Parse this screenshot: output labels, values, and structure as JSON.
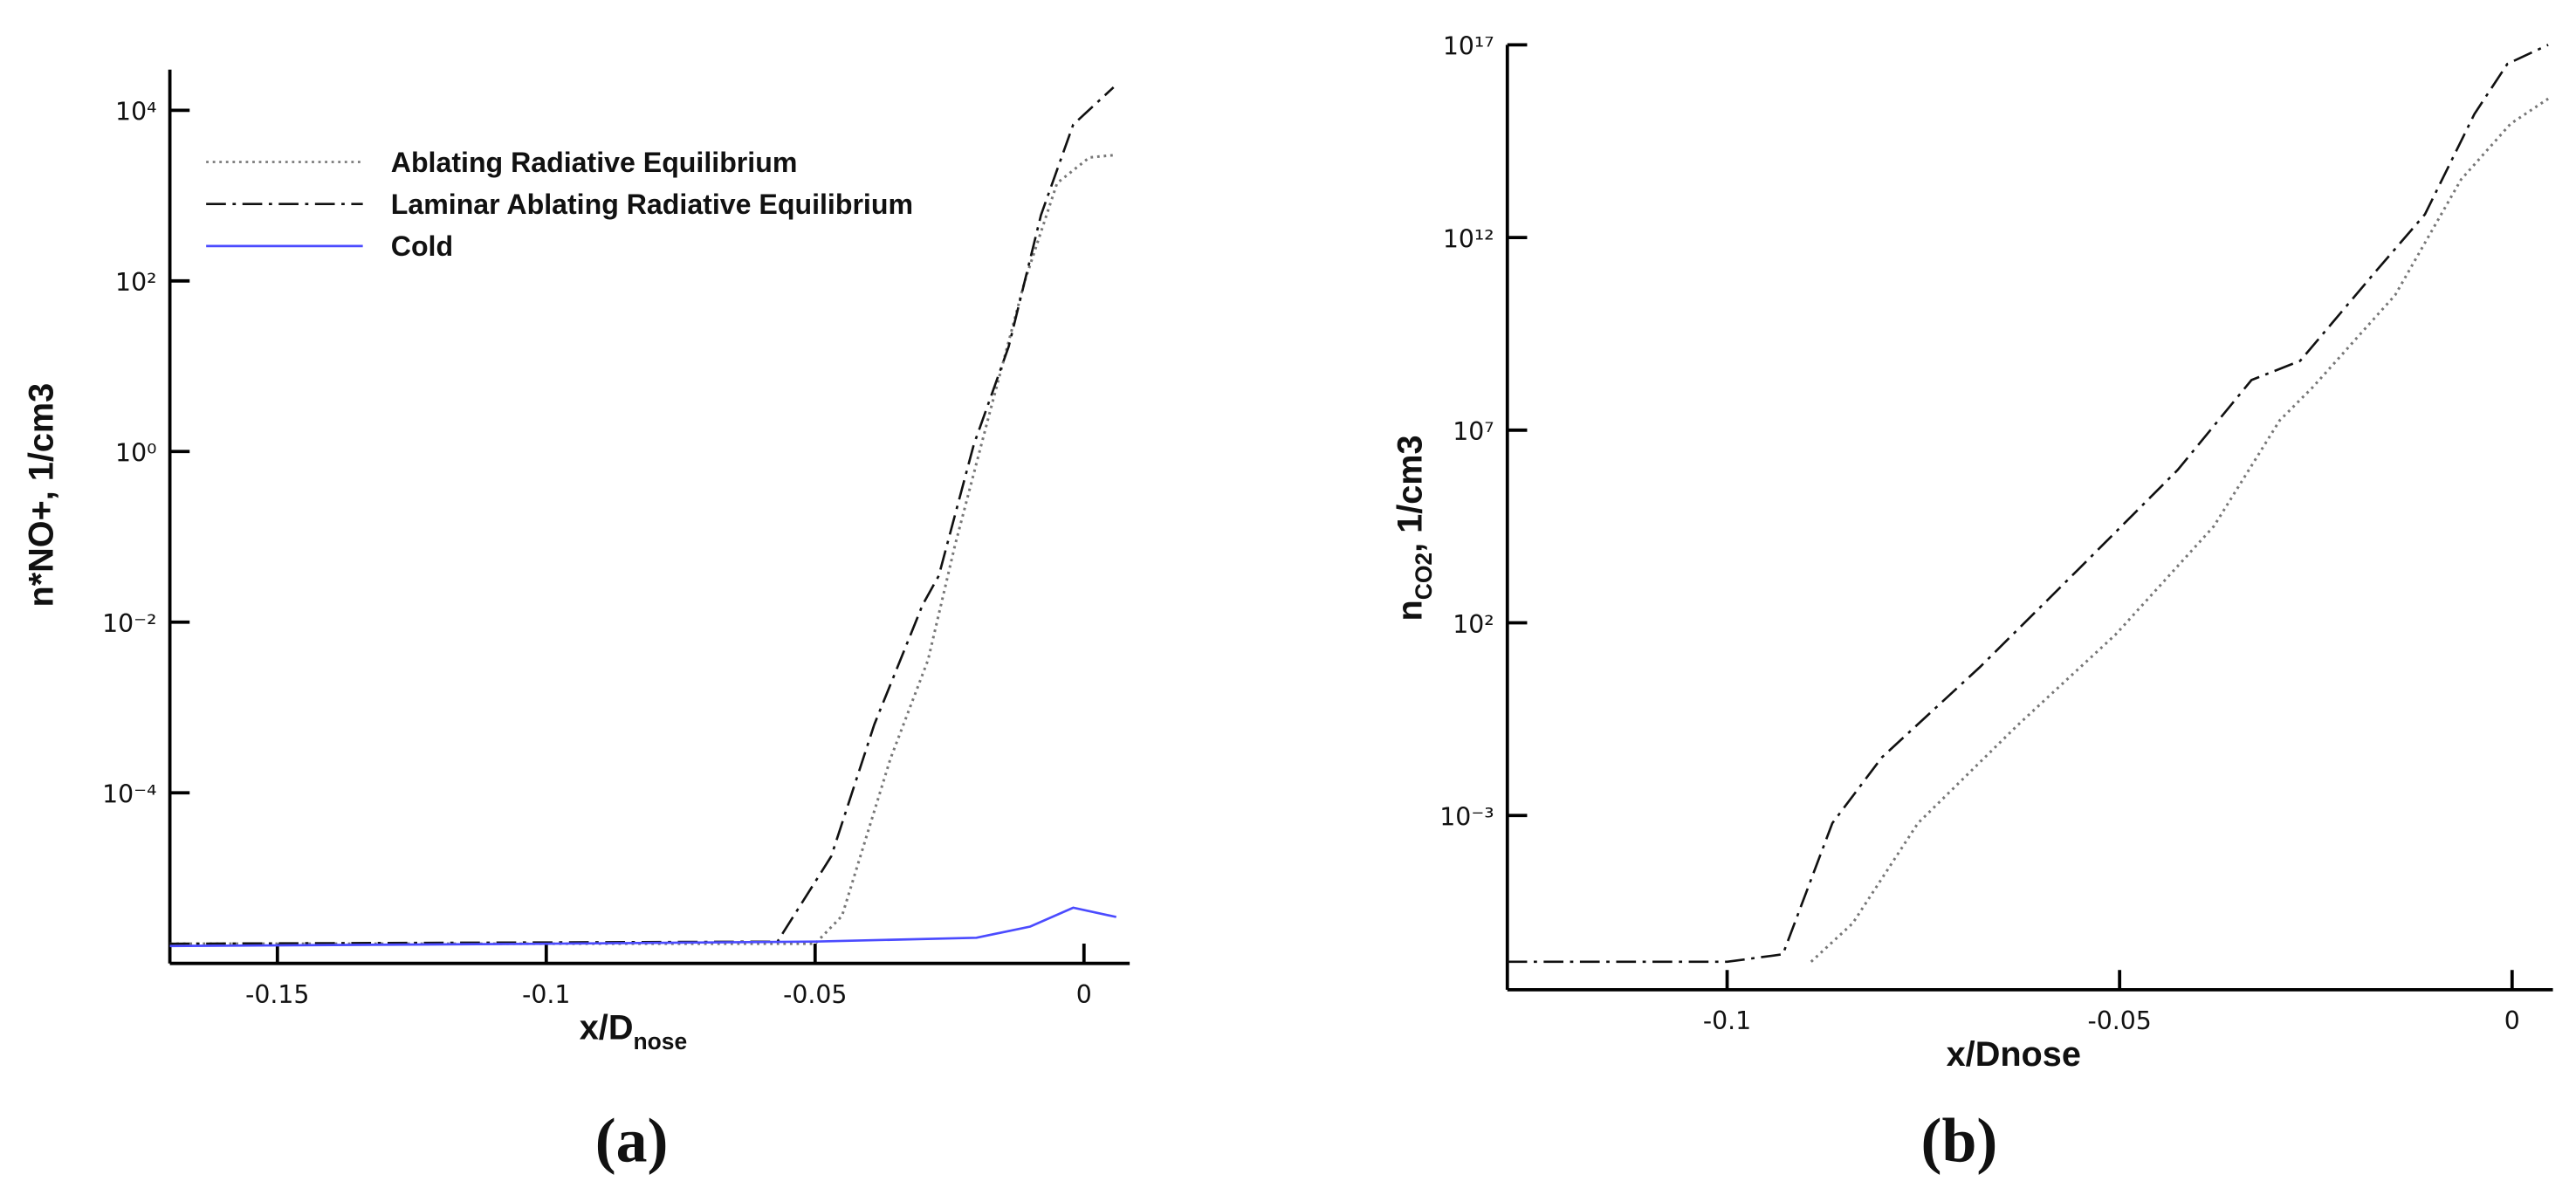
{
  "chart_data": [
    {
      "type": "line",
      "caption": "(a)",
      "ylog": true,
      "xlabel": {
        "text": "x/D",
        "subscript": "nose"
      },
      "ylabel": {
        "text": "n*NO+, 1/cm3"
      },
      "xlim": [
        -0.17,
        0.0085
      ],
      "xticks": [
        -0.15,
        -0.1,
        -0.05,
        0
      ],
      "ylim": [
        1e-06,
        30000
      ],
      "yticks": [
        {
          "value": 0.0001,
          "label": "10⁻⁴"
        },
        {
          "value": 0.01,
          "label": "10⁻²"
        },
        {
          "value": 1,
          "label": "10⁰"
        },
        {
          "value": 100,
          "label": "10²"
        },
        {
          "value": 10000,
          "label": "10⁴"
        }
      ],
      "legend": "top-left",
      "series": [
        {
          "name": "Ablating Radiative Equilibrium",
          "color": "#777777",
          "dash": "dotted",
          "x": [
            -0.17,
            -0.05,
            -0.045,
            -0.036,
            -0.029,
            -0.024,
            -0.0175,
            -0.011,
            -0.005,
            0.001,
            0.006
          ],
          "values": [
            1.7e-06,
            1.7e-06,
            3.6e-06,
            0.00025,
            0.0036,
            0.079,
            2.9,
            100,
            1400,
            2800,
            3000
          ]
        },
        {
          "name": "Laminar Ablating Radiative Equilibrium",
          "color": "#111111",
          "dash": "dash-dot",
          "x": [
            -0.17,
            -0.057,
            -0.047,
            -0.039,
            -0.03,
            -0.027,
            -0.0205,
            -0.014,
            -0.008,
            -0.002,
            0.0055
          ],
          "values": [
            1.7e-06,
            1.8e-06,
            1.8e-05,
            0.00063,
            0.016,
            0.035,
            1.2,
            17,
            590,
            6800,
            18600
          ]
        },
        {
          "name": "Cold",
          "color": "#4b4bff",
          "dash": "solid",
          "x": [
            -0.17,
            -0.1,
            -0.05,
            -0.02,
            -0.01,
            -0.002,
            0.006
          ],
          "values": [
            1.6e-06,
            1.7e-06,
            1.8e-06,
            2e-06,
            2.7e-06,
            4.5e-06,
            3.5e-06
          ]
        }
      ]
    },
    {
      "type": "line",
      "caption": "(b)",
      "ylog": true,
      "xlabel": {
        "text": "x/Dnose"
      },
      "ylabel": {
        "text": "n",
        "subscript": "CO2",
        "after": ", 1/cm3"
      },
      "xlim": [
        -0.128,
        0.0052
      ],
      "xticks": [
        -0.1,
        -0.05,
        0
      ],
      "ylim": [
        3e-08,
        1e+17
      ],
      "yticks": [
        {
          "value": 0.001,
          "label": "10⁻³"
        },
        {
          "value": 100,
          "label": "10²"
        },
        {
          "value": 10000000,
          "label": "10⁷"
        },
        {
          "value": 1000000000000,
          "label": "10¹²"
        },
        {
          "value": 1e+17,
          "label": "10¹⁷"
        }
      ],
      "series": [
        {
          "color": "#777777",
          "dash": "dotted",
          "x": [
            -0.0893,
            -0.084,
            -0.0757,
            -0.063,
            -0.0505,
            -0.038,
            -0.0296,
            -0.0254,
            -0.0149,
            -0.0065,
            -0.0002,
            0.0046
          ],
          "values": [
            1.6e-07,
            1.6e-06,
            0.00063,
            0.22,
            50,
            32000,
            18000000,
            130000000,
            32000000000,
            32000000000000,
            890000000000000,
            4000000000000000
          ]
        },
        {
          "color": "#111111",
          "dash": "dash-dot",
          "x": [
            -0.128,
            -0.1,
            -0.0929,
            -0.0866,
            -0.0803,
            -0.0678,
            -0.0552,
            -0.0426,
            -0.0332,
            -0.027,
            -0.0174,
            -0.0111,
            -0.0048,
            -0.0006,
            0.0046
          ],
          "values": [
            1.6e-07,
            1.6e-07,
            2.5e-07,
            0.00063,
            0.032,
            7.1,
            2500,
            930000,
            200000000,
            630000000,
            130000000000,
            4000000000000,
            1600000000000000,
            32000000000000000,
            1e+17
          ]
        }
      ]
    }
  ]
}
